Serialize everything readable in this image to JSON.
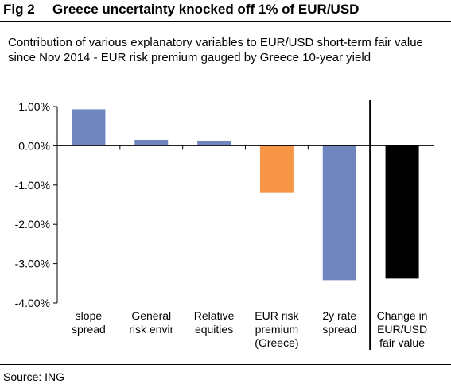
{
  "figure": {
    "label": "Fig 2",
    "title": "Greece uncertainty knocked off 1% of EUR/USD"
  },
  "chart_data": {
    "type": "bar",
    "title": "Contribution of various explanatory variables to EUR/USD short-term fair value since Nov 2014 - EUR risk premium gauged by Greece 10-year yield",
    "categories": [
      [
        "slope",
        "spread"
      ],
      [
        "General",
        "risk envir"
      ],
      [
        "Relative",
        "equities"
      ],
      [
        "EUR risk",
        "premium",
        "(Greece)"
      ],
      [
        "2y rate",
        "spread"
      ],
      [
        "Change in",
        "EUR/USD",
        "fair value"
      ]
    ],
    "values": [
      0.93,
      0.15,
      0.13,
      -1.2,
      -3.42,
      -3.38
    ],
    "colors": [
      "#6f86be",
      "#6f86be",
      "#6f86be",
      "#f79646",
      "#6f86be",
      "#000000"
    ],
    "ylim": [
      -4.0,
      1.0
    ],
    "yticks": [
      1.0,
      0.0,
      -1.0,
      -2.0,
      -3.0,
      -4.0
    ],
    "ytick_labels": [
      "1.00%",
      "0.00%",
      "-1.00%",
      "-2.00%",
      "-3.00%",
      "-4.00%"
    ],
    "grid": false,
    "separator_after_category": 4
  },
  "footer": {
    "source": "Source: ING"
  }
}
